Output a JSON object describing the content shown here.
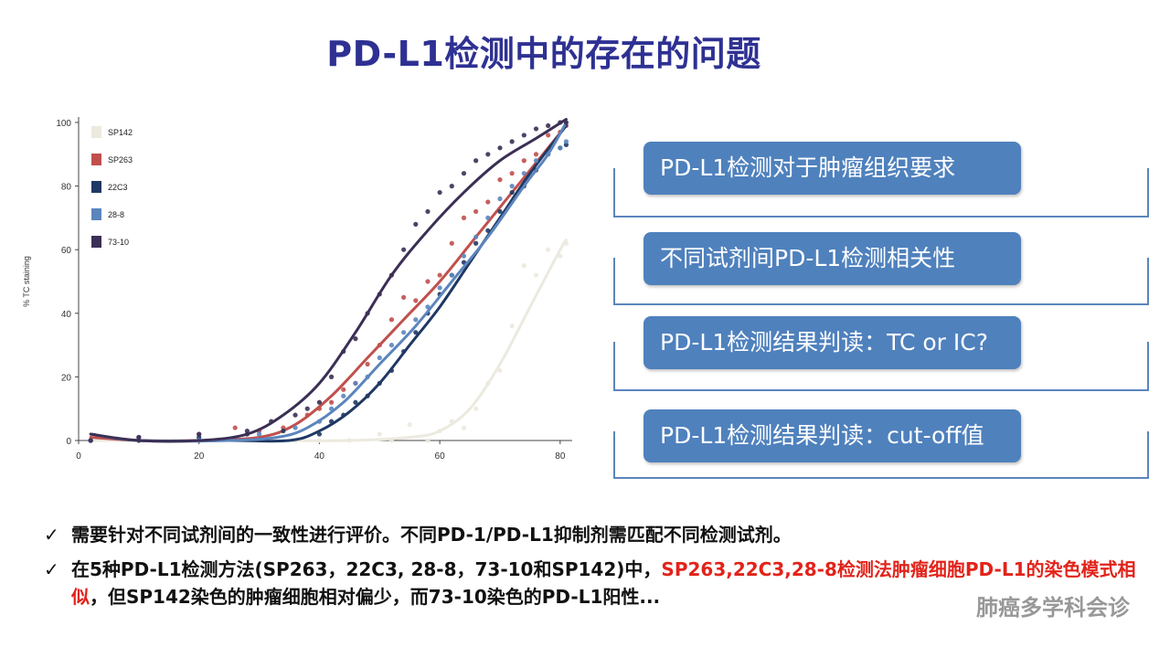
{
  "title": "PD-L1检测中的存在的问题",
  "chart_data": {
    "type": "scatter",
    "xlabel": "",
    "ylabel": "% TC staining",
    "xlim": [
      0,
      82
    ],
    "ylim": [
      0,
      100
    ],
    "x_ticks": [
      0,
      20,
      40,
      60,
      80
    ],
    "y_ticks": [
      0,
      20,
      40,
      60,
      80,
      100
    ],
    "legend_position": "top-left",
    "series": [
      {
        "name": "SP142",
        "color": "#ece9df",
        "x": [
          30,
          36,
          40,
          45,
          50,
          52,
          55,
          58,
          60,
          62,
          64,
          66,
          68,
          70,
          72,
          74,
          76,
          78,
          80,
          81
        ],
        "y": [
          0,
          0,
          0,
          0,
          2,
          0,
          5,
          0,
          3,
          6,
          4,
          10,
          18,
          22,
          36,
          55,
          52,
          60,
          58,
          62
        ],
        "fit": [
          [
            2,
            0
          ],
          [
            30,
            0
          ],
          [
            45,
            0
          ],
          [
            55,
            1
          ],
          [
            60,
            3
          ],
          [
            65,
            10
          ],
          [
            70,
            24
          ],
          [
            75,
            42
          ],
          [
            80,
            60
          ],
          [
            81,
            63
          ]
        ]
      },
      {
        "name": "SP263",
        "color": "#c0504d",
        "x": [
          2,
          10,
          20,
          26,
          30,
          34,
          38,
          40,
          42,
          44,
          46,
          48,
          50,
          52,
          54,
          56,
          58,
          60,
          62,
          64,
          66,
          68,
          70,
          72,
          74,
          76,
          78,
          80,
          81
        ],
        "y": [
          0,
          1,
          2,
          4,
          3,
          4,
          8,
          10,
          12,
          16,
          18,
          24,
          30,
          38,
          45,
          44,
          50,
          52,
          62,
          70,
          72,
          75,
          82,
          84,
          88,
          90,
          96,
          97,
          99
        ],
        "fit": [
          [
            2,
            1
          ],
          [
            10,
            0
          ],
          [
            20,
            0
          ],
          [
            30,
            1
          ],
          [
            36,
            5
          ],
          [
            42,
            14
          ],
          [
            48,
            26
          ],
          [
            54,
            38
          ],
          [
            60,
            50
          ],
          [
            66,
            64
          ],
          [
            72,
            78
          ],
          [
            78,
            92
          ],
          [
            81,
            99
          ]
        ]
      },
      {
        "name": "22C3",
        "color": "#1f3864",
        "x": [
          2,
          10,
          20,
          28,
          34,
          40,
          42,
          44,
          46,
          48,
          50,
          52,
          54,
          56,
          58,
          60,
          62,
          64,
          66,
          68,
          70,
          72,
          74,
          76,
          78,
          80,
          81
        ],
        "y": [
          0,
          0,
          1,
          2,
          3,
          2,
          6,
          8,
          12,
          14,
          18,
          22,
          28,
          34,
          40,
          46,
          52,
          56,
          62,
          66,
          72,
          78,
          80,
          85,
          90,
          92,
          93
        ],
        "fit": [
          [
            2,
            2
          ],
          [
            10,
            0
          ],
          [
            25,
            0
          ],
          [
            35,
            0
          ],
          [
            40,
            3
          ],
          [
            45,
            9
          ],
          [
            50,
            18
          ],
          [
            55,
            30
          ],
          [
            60,
            42
          ],
          [
            65,
            56
          ],
          [
            70,
            70
          ],
          [
            75,
            84
          ],
          [
            81,
            99
          ]
        ]
      },
      {
        "name": "28-8",
        "color": "#5b85bd",
        "x": [
          2,
          10,
          20,
          30,
          36,
          40,
          42,
          44,
          46,
          48,
          50,
          52,
          54,
          56,
          58,
          60,
          62,
          64,
          66,
          68,
          70,
          72,
          74,
          76,
          78,
          80,
          81
        ],
        "y": [
          0,
          1,
          0,
          2,
          4,
          6,
          10,
          14,
          18,
          20,
          26,
          30,
          34,
          38,
          42,
          48,
          52,
          58,
          64,
          70,
          76,
          80,
          84,
          88,
          90,
          92,
          94
        ],
        "fit": [
          [
            2,
            2
          ],
          [
            10,
            0
          ],
          [
            25,
            0
          ],
          [
            33,
            1
          ],
          [
            38,
            4
          ],
          [
            44,
            12
          ],
          [
            50,
            24
          ],
          [
            56,
            36
          ],
          [
            62,
            50
          ],
          [
            68,
            64
          ],
          [
            74,
            80
          ],
          [
            78,
            90
          ],
          [
            81,
            100
          ]
        ]
      },
      {
        "name": "73-10",
        "color": "#3b2f55",
        "x": [
          2,
          10,
          20,
          28,
          32,
          36,
          38,
          40,
          42,
          44,
          46,
          48,
          50,
          52,
          54,
          56,
          58,
          60,
          62,
          64,
          66,
          68,
          70,
          72,
          74,
          76,
          78,
          80,
          81
        ],
        "y": [
          0,
          1,
          2,
          3,
          6,
          8,
          10,
          12,
          20,
          28,
          32,
          40,
          46,
          52,
          60,
          68,
          72,
          78,
          80,
          84,
          88,
          90,
          92,
          94,
          96,
          98,
          99,
          100,
          100
        ],
        "fit": [
          [
            2,
            2
          ],
          [
            10,
            0
          ],
          [
            20,
            0
          ],
          [
            28,
            2
          ],
          [
            34,
            8
          ],
          [
            40,
            18
          ],
          [
            46,
            34
          ],
          [
            52,
            52
          ],
          [
            58,
            66
          ],
          [
            64,
            78
          ],
          [
            70,
            88
          ],
          [
            76,
            95
          ],
          [
            81,
            101
          ]
        ]
      }
    ]
  },
  "pills": [
    {
      "label": "PD-L1检测对于肿瘤组织要求"
    },
    {
      "label": "不同试剂间PD-L1检测相关性"
    },
    {
      "label": "PD-L1检测结果判读：TC or IC?"
    },
    {
      "label": "PD-L1检测结果判读：cut-off值"
    }
  ],
  "bullets": {
    "check": "✓",
    "b1": "需要针对不同试剂间的一致性进行评价。不同PD-1/PD-L1抑制剂需匹配不同检测试剂。",
    "b2_pre": "在5种PD-L1检测方法(SP263，22C3, 28-8，73-10和SP142)中，",
    "b2_red": "SP263,22C3,28-8检测法肿瘤细胞PD-L1的染色模式相似",
    "b2_post": "，但SP142染色的肿瘤细胞相对偏少，而73-10染色的PD-L1阳性..."
  },
  "watermark": "肺癌多学科会诊"
}
